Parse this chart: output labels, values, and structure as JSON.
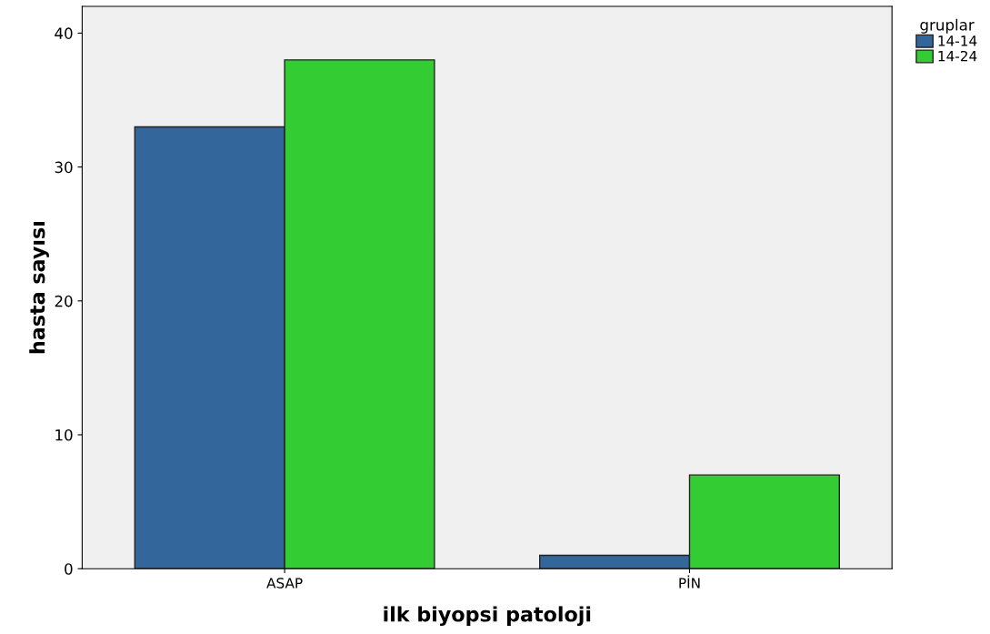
{
  "chart_data": {
    "type": "bar",
    "xlabel": "ilk biyopsi patoloji",
    "ylabel": "hasta sayısı",
    "legend_title": "gruplar",
    "categories": [
      "ASAP",
      "PİN"
    ],
    "series": [
      {
        "name": "14-14",
        "color": "#33669a",
        "values": [
          33,
          1
        ]
      },
      {
        "name": "14-24",
        "color": "#33cc33",
        "values": [
          38,
          7
        ]
      }
    ],
    "ylim": [
      0,
      42
    ],
    "yticks": [
      0,
      10,
      20,
      30,
      40
    ],
    "grid": false,
    "legend": "top right outside"
  }
}
